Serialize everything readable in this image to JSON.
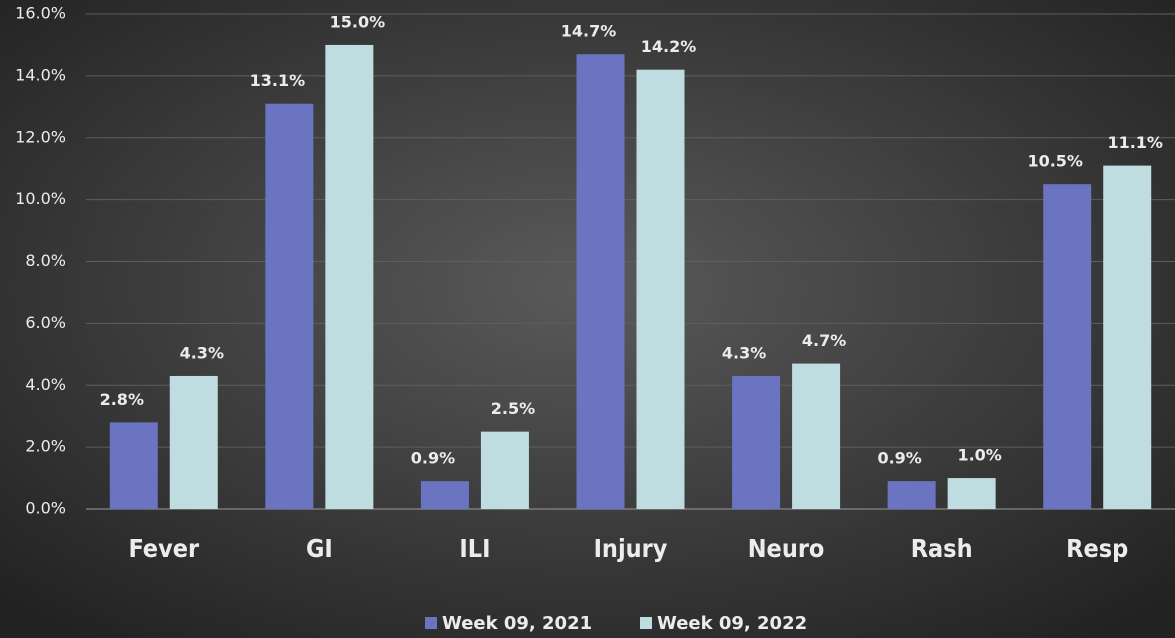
{
  "chart_data": {
    "type": "bar",
    "categories": [
      "Fever",
      "GI",
      "ILI",
      "Injury",
      "Neuro",
      "Rash",
      "Resp"
    ],
    "series": [
      {
        "name": "Week 09, 2021",
        "color": "#6b74c0",
        "values": [
          2.8,
          13.1,
          0.9,
          14.7,
          4.3,
          0.9,
          10.5
        ],
        "value_labels": [
          "2.8%",
          "13.1%",
          "0.9%",
          "14.7%",
          "4.3%",
          "0.9%",
          "10.5%"
        ]
      },
      {
        "name": "Week 09, 2022",
        "color": "#bfdce0",
        "values": [
          4.3,
          15.0,
          2.5,
          14.2,
          4.7,
          1.0,
          11.1
        ],
        "value_labels": [
          "4.3%",
          "15.0%",
          "2.5%",
          "14.2%",
          "4.7%",
          "1.0%",
          "11.1%"
        ]
      }
    ],
    "ylim": [
      0,
      16
    ],
    "yticks": [
      {
        "value": 0,
        "label": "0.0%"
      },
      {
        "value": 2,
        "label": "2.0%"
      },
      {
        "value": 4,
        "label": "4.0%"
      },
      {
        "value": 6,
        "label": "6.0%"
      },
      {
        "value": 8,
        "label": "8.0%"
      },
      {
        "value": 10,
        "label": "10.0%"
      },
      {
        "value": 12,
        "label": "12.0%"
      },
      {
        "value": 14,
        "label": "14.0%"
      },
      {
        "value": 16,
        "label": "16.0%"
      }
    ],
    "grid": true,
    "legend": "bottom"
  }
}
